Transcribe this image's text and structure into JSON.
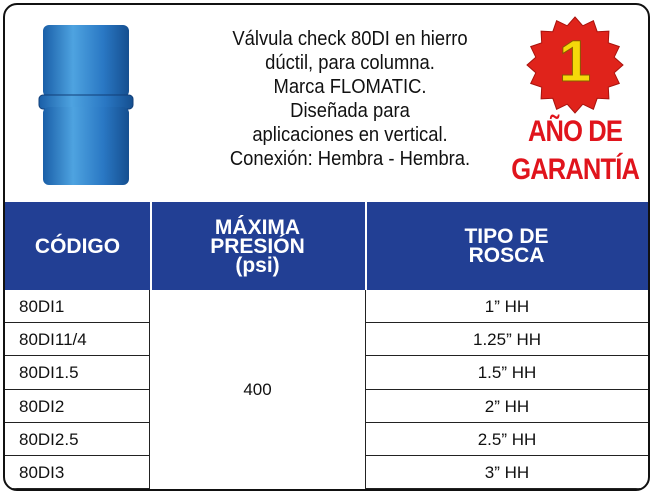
{
  "header": {
    "description": [
      "Válvula check 80DI en hierro",
      "dúctil, para columna.",
      "Marca FLOMATIC.",
      "Diseñada para",
      "aplicaciones en vertical.",
      "Conexión: Hembra - Hembra."
    ],
    "badge_number": "1",
    "warranty": [
      "AÑO DE",
      "GARANTÍA"
    ]
  },
  "table": {
    "columns": [
      [
        "CÓDIGO"
      ],
      [
        "MÁXIMA",
        "PRESIÓN",
        "(psi)"
      ],
      [
        "TIPO DE",
        "ROSCA"
      ]
    ],
    "pressure": 400,
    "rows": [
      [
        "80DI1",
        "1” HH"
      ],
      [
        "80DI11/4",
        "1.25” HH"
      ],
      [
        "80DI1.5",
        "1.5” HH"
      ],
      [
        "80DI2",
        "2” HH"
      ],
      [
        "80DI2.5",
        "2.5” HH"
      ],
      [
        "80DI3",
        "3” HH"
      ]
    ]
  }
}
